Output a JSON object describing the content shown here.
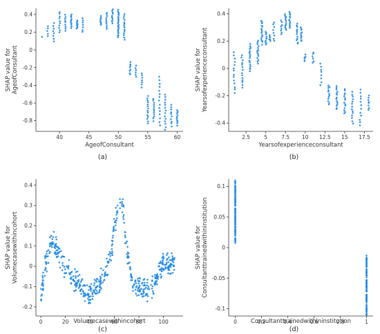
{
  "chart_data": [
    {
      "id": "a",
      "type": "scatter",
      "caption": "(a)",
      "xlabel": "AgeofConsultant",
      "ylabel": [
        "SHAP value for",
        "AgeofConsultant"
      ],
      "xlim": [
        36,
        61
      ],
      "ylim": [
        -0.92,
        0.47
      ],
      "xticks": [
        40,
        45,
        50,
        55,
        60
      ],
      "yticks": [
        0.4,
        0.2,
        0.0,
        -0.2,
        -0.4,
        -0.6,
        -0.8
      ],
      "color": "#1e88e5",
      "clusters": [
        {
          "x": 37,
          "y_min": 0.15,
          "y_max": 0.15,
          "n": 1
        },
        {
          "x": 38,
          "y_min": 0.15,
          "y_max": 0.27,
          "n": 5
        },
        {
          "x": 39,
          "y_min": 0.1,
          "y_max": 0.3,
          "n": 8
        },
        {
          "x": 40,
          "y_min": 0.2,
          "y_max": 0.43,
          "n": 10
        },
        {
          "x": 41,
          "y_min": 0.22,
          "y_max": 0.4,
          "n": 9
        },
        {
          "x": 42,
          "y_min": 0.25,
          "y_max": 0.4,
          "n": 10
        },
        {
          "x": 43,
          "y_min": 0.24,
          "y_max": 0.33,
          "n": 8
        },
        {
          "x": 44,
          "y_min": 0.2,
          "y_max": 0.36,
          "n": 7
        },
        {
          "x": 47,
          "y_min": 0.28,
          "y_max": 0.38,
          "n": 8
        },
        {
          "x": 48,
          "y_min": 0.24,
          "y_max": 0.42,
          "n": 10
        },
        {
          "x": 49,
          "y_min": 0.3,
          "y_max": 0.46,
          "n": 10
        },
        {
          "x": 50,
          "y_min": 0.14,
          "y_max": 0.45,
          "n": 22
        },
        {
          "x": 51,
          "y_min": 0.12,
          "y_max": 0.4,
          "n": 14
        },
        {
          "x": 52,
          "y_min": -0.28,
          "y_max": -0.14,
          "n": 8
        },
        {
          "x": 53,
          "y_min": -0.3,
          "y_max": -0.18,
          "n": 6
        },
        {
          "x": 54,
          "y_min": -0.42,
          "y_max": -0.26,
          "n": 7
        },
        {
          "x": 55,
          "y_min": -0.83,
          "y_max": -0.52,
          "n": 14
        },
        {
          "x": 56,
          "y_min": -0.8,
          "y_max": -0.55,
          "n": 12
        },
        {
          "x": 57,
          "y_min": -0.85,
          "y_max": -0.3,
          "n": 15
        },
        {
          "x": 58,
          "y_min": -0.9,
          "y_max": -0.5,
          "n": 14
        },
        {
          "x": 59,
          "y_min": -0.86,
          "y_max": -0.62,
          "n": 10
        },
        {
          "x": 60,
          "y_min": -0.85,
          "y_max": -0.68,
          "n": 10
        }
      ]
    },
    {
      "id": "b",
      "type": "scatter",
      "caption": "(b)",
      "xlabel": "Yearsofexperienceconsultant",
      "ylabel": [
        "SHAP value for",
        "Yearsofexperienceconsultant"
      ],
      "xlim": [
        0.3,
        18.6
      ],
      "ylim": [
        -0.46,
        0.44
      ],
      "xticks": [
        2.5,
        5.0,
        7.5,
        10.0,
        12.5,
        15.0,
        17.5
      ],
      "yticks": [
        0.4,
        0.2,
        0.0,
        -0.2,
        -0.4
      ],
      "color": "#1e88e5",
      "clusters": [
        {
          "x": 1,
          "y_min": -0.18,
          "y_max": 0.12,
          "n": 14
        },
        {
          "x": 2,
          "y_min": -0.14,
          "y_max": 0.1,
          "n": 14
        },
        {
          "x": 3,
          "y_min": -0.02,
          "y_max": 0.18,
          "n": 16
        },
        {
          "x": 4,
          "y_min": 0.04,
          "y_max": 0.2,
          "n": 14
        },
        {
          "x": 4.5,
          "y_min": 0.18,
          "y_max": 0.35,
          "n": 16
        },
        {
          "x": 5,
          "y_min": 0.17,
          "y_max": 0.27,
          "n": 10
        },
        {
          "x": 5.5,
          "y_min": 0.2,
          "y_max": 0.24,
          "n": 6
        },
        {
          "x": 6,
          "y_min": 0.2,
          "y_max": 0.34,
          "n": 8
        },
        {
          "x": 7,
          "y_min": 0.25,
          "y_max": 0.35,
          "n": 8
        },
        {
          "x": 7.5,
          "y_min": 0.28,
          "y_max": 0.4,
          "n": 12
        },
        {
          "x": 8,
          "y_min": 0.3,
          "y_max": 0.41,
          "n": 12
        },
        {
          "x": 9,
          "y_min": 0.18,
          "y_max": 0.33,
          "n": 12
        },
        {
          "x": 9.5,
          "y_min": 0.2,
          "y_max": 0.3,
          "n": 10
        },
        {
          "x": 10,
          "y_min": 0.05,
          "y_max": 0.1,
          "n": 6
        },
        {
          "x": 11,
          "y_min": 0.04,
          "y_max": 0.12,
          "n": 6
        },
        {
          "x": 12,
          "y_min": -0.12,
          "y_max": 0.04,
          "n": 8
        },
        {
          "x": 13,
          "y_min": -0.26,
          "y_max": -0.12,
          "n": 12
        },
        {
          "x": 14,
          "y_min": -0.3,
          "y_max": -0.13,
          "n": 14
        },
        {
          "x": 15,
          "y_min": -0.33,
          "y_max": -0.15,
          "n": 14
        },
        {
          "x": 16,
          "y_min": -0.4,
          "y_max": -0.17,
          "n": 14
        },
        {
          "x": 17,
          "y_min": -0.42,
          "y_max": -0.15,
          "n": 12
        },
        {
          "x": 18,
          "y_min": -0.3,
          "y_max": -0.2,
          "n": 8
        }
      ]
    },
    {
      "id": "c",
      "type": "scatter",
      "caption": "(c)",
      "xlabel": "Volumecasewithincohort",
      "ylabel": [
        "SHAP value for",
        "Volumecasewithincohort"
      ],
      "xlim": [
        -4,
        116
      ],
      "ylim": [
        -0.245,
        0.43
      ],
      "xticks": [
        0,
        20,
        40,
        60,
        80,
        100
      ],
      "yticks": [
        0.4,
        0.3,
        0.2,
        0.1,
        0.0,
        -0.1,
        -0.2
      ],
      "color": "#1e88e5",
      "curve": [
        [
          0,
          -0.17
        ],
        [
          3,
          -0.02
        ],
        [
          6,
          0.07
        ],
        [
          9,
          0.11
        ],
        [
          12,
          0.11
        ],
        [
          15,
          0.05
        ],
        [
          18,
          0.02
        ],
        [
          22,
          -0.02
        ],
        [
          26,
          -0.06
        ],
        [
          30,
          -0.09
        ],
        [
          34,
          -0.12
        ],
        [
          38,
          -0.14
        ],
        [
          42,
          -0.13
        ],
        [
          46,
          -0.1
        ],
        [
          50,
          -0.06
        ],
        [
          54,
          -0.02
        ],
        [
          57,
          0.05
        ],
        [
          60,
          0.2
        ],
        [
          63,
          0.3
        ],
        [
          65,
          0.33
        ],
        [
          67,
          0.28
        ],
        [
          70,
          0.08
        ],
        [
          74,
          -0.06
        ],
        [
          78,
          -0.1
        ],
        [
          82,
          -0.11
        ],
        [
          86,
          -0.12
        ],
        [
          90,
          -0.11
        ],
        [
          94,
          -0.06
        ],
        [
          98,
          0.0
        ],
        [
          102,
          0.02
        ],
        [
          106,
          0.01
        ],
        [
          110,
          0.02
        ]
      ],
      "spread": 0.055,
      "n": 520
    },
    {
      "id": "d",
      "type": "scatter",
      "caption": "(d)",
      "xlabel": "Consultanttrainedwithininstitution",
      "ylabel": [
        "SHAP value for",
        "Consultanttrainedwithininstitution"
      ],
      "xlim": [
        -0.05,
        1.05
      ],
      "ylim": [
        -0.112,
        0.112
      ],
      "xticks": [
        0.0,
        0.2,
        0.4,
        0.6,
        0.8,
        1.0
      ],
      "yticks": [
        0.1,
        0.05,
        0.0,
        -0.05,
        -0.1
      ],
      "color": "#1e88e5",
      "clusters": [
        {
          "x": 0.0,
          "y_min": 0.012,
          "y_max": 0.106,
          "n": 110
        },
        {
          "x": 1.0,
          "y_min": -0.11,
          "y_max": -0.015,
          "n": 110
        }
      ]
    }
  ]
}
